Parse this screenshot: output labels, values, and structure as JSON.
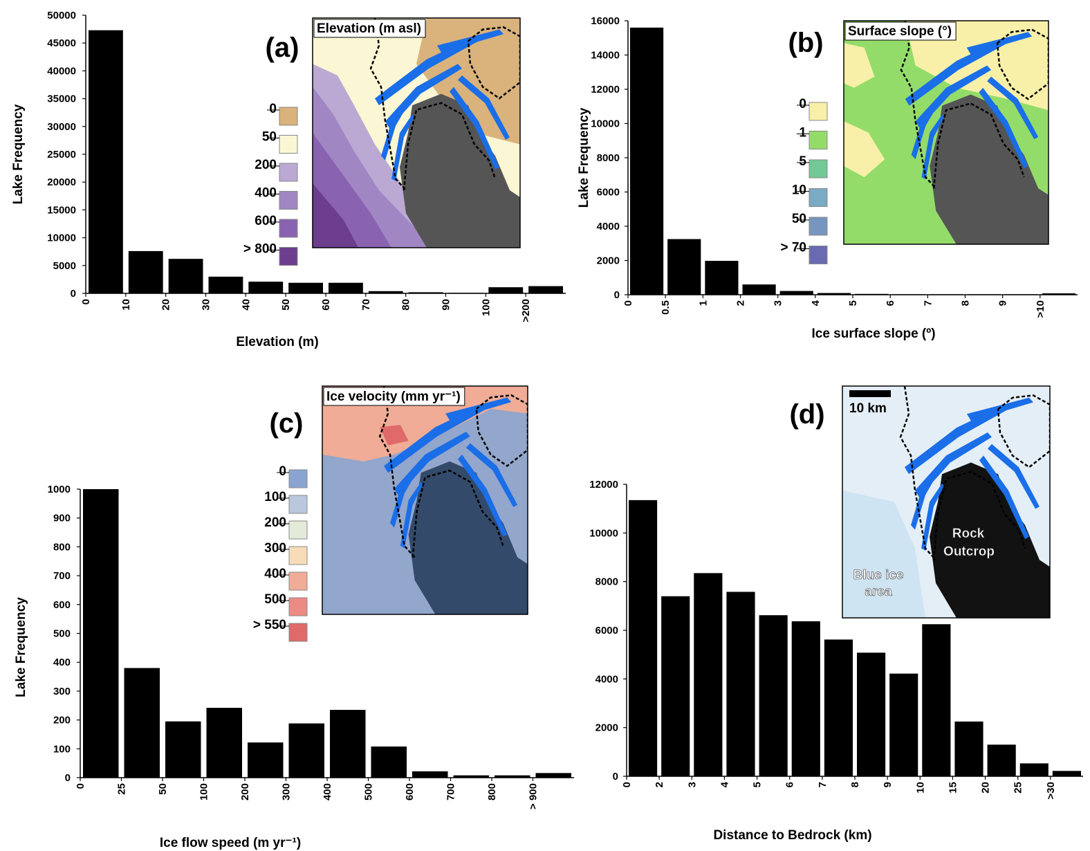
{
  "colors": {
    "bar": "#000000",
    "meltwater_lakes": "#1a6ee8",
    "rock_outcrop": "#555555"
  },
  "chart_data": [
    {
      "panel": "(a)",
      "type": "bar",
      "xlabel": "Elevation (m)",
      "ylabel": "Lake Frequency",
      "ylim": [
        0,
        50000
      ],
      "yticks": [
        "0",
        "5000",
        "10000",
        "15000",
        "20000",
        "25000",
        "30000",
        "35000",
        "40000",
        "45000",
        "50000"
      ],
      "xtick_labels": [
        "0",
        "10",
        "20",
        "30",
        "40",
        "50",
        "60",
        "70",
        "80",
        "90",
        "100",
        ">200"
      ],
      "values": [
        47300,
        7600,
        6200,
        3000,
        2100,
        1900,
        1900,
        400,
        200,
        100,
        1100,
        1300
      ],
      "inset": {
        "title": "Elevation (m asl)",
        "legend": [
          {
            "label": "0",
            "color": "#d9b27c"
          },
          {
            "label": "50",
            "color": "#fbf6d4"
          },
          {
            "label": "200",
            "color": "#bba9d4"
          },
          {
            "label": "400",
            "color": "#a087c4"
          },
          {
            "label": "600",
            "color": "#8963b0"
          },
          {
            "label": "> 800",
            "color": "#6d3e8e"
          }
        ]
      }
    },
    {
      "panel": "(b)",
      "type": "bar",
      "xlabel": "Ice surface slope (º)",
      "ylabel": "Lake Frequency",
      "ylim": [
        0,
        16000
      ],
      "yticks": [
        "0",
        "2000",
        "4000",
        "6000",
        "8000",
        "10000",
        "12000",
        "14000",
        "16000"
      ],
      "xtick_labels": [
        "0",
        "0.5",
        "1",
        "2",
        "3",
        "4",
        "5",
        "6",
        "7",
        "8",
        "9",
        ">10"
      ],
      "values": [
        15600,
        3250,
        1980,
        600,
        220,
        100,
        50,
        30,
        30,
        30,
        30,
        80
      ],
      "inset": {
        "title": "Surface slope (°)",
        "legend": [
          {
            "label": "0",
            "color": "#f8f0a8"
          },
          {
            "label": "1",
            "color": "#94dc6a"
          },
          {
            "label": "5",
            "color": "#72c996"
          },
          {
            "label": "10",
            "color": "#7aaac4"
          },
          {
            "label": "50",
            "color": "#7696bf"
          },
          {
            "label": "> 70",
            "color": "#6a6ab0"
          }
        ]
      }
    },
    {
      "panel": "(c)",
      "type": "bar",
      "xlabel": "Ice flow speed (m yr⁻¹)",
      "ylabel": "Lake Frequency",
      "ylim": [
        0,
        1000
      ],
      "yticks": [
        "0",
        "100",
        "200",
        "300",
        "400",
        "500",
        "600",
        "700",
        "800",
        "900",
        "1000"
      ],
      "xtick_labels": [
        "0",
        "25",
        "50",
        "100",
        "200",
        "300",
        "400",
        "500",
        "600",
        "700",
        "800",
        "> 900"
      ],
      "values": [
        1000,
        380,
        195,
        242,
        122,
        188,
        235,
        108,
        22,
        8,
        8,
        16
      ],
      "inset": {
        "title": "Ice velocity (mm yr⁻¹)",
        "legend": [
          {
            "label": "0",
            "color": "#8aa4d2"
          },
          {
            "label": "100",
            "color": "#b9c8dc"
          },
          {
            "label": "200",
            "color": "#e4ead8"
          },
          {
            "label": "300",
            "color": "#f8dcb8"
          },
          {
            "label": "400",
            "color": "#f0ac96"
          },
          {
            "label": "500",
            "color": "#ec8a84"
          },
          {
            "label": "> 550",
            "color": "#e06a6a"
          }
        ]
      }
    },
    {
      "panel": "(d)",
      "type": "bar",
      "xlabel": "Distance to Bedrock (km)",
      "ylabel": "",
      "ylim": [
        0,
        12000
      ],
      "yticks": [
        "0",
        "2000",
        "4000",
        "6000",
        "8000",
        "10000",
        "12000"
      ],
      "xtick_labels": [
        "0",
        "2",
        "3",
        "4",
        "5",
        "6",
        "7",
        "8",
        "9",
        "10",
        "15",
        "20",
        "25",
        ">30"
      ],
      "values": [
        11350,
        7400,
        8350,
        7580,
        6620,
        6370,
        5620,
        5080,
        4220,
        6250,
        2250,
        1300,
        530,
        220
      ],
      "inset": {
        "scale_bar": "10 km",
        "notes": [
          "Rock",
          "Outcrop",
          "Blue ice",
          "area"
        ]
      }
    }
  ]
}
